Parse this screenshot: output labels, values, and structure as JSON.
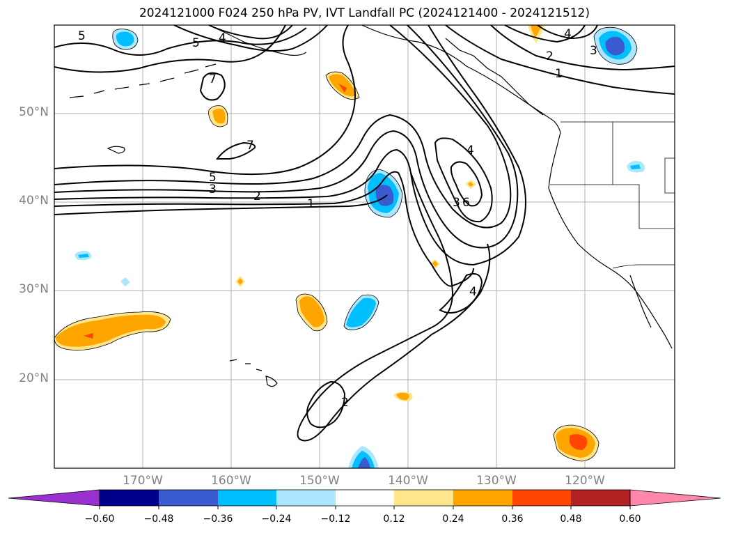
{
  "title": "2024121000 F024 250 hPa PV, IVT Landfall PC (2024121400 - 2024121512)",
  "lat_labels": [
    "50°N",
    "40°N",
    "30°N",
    "20°N"
  ],
  "lon_labels": [
    "170°W",
    "160°W",
    "150°W",
    "140°W",
    "130°W",
    "120°W"
  ],
  "contour_labels": [
    "5",
    "4",
    "5",
    "4",
    "2",
    "1",
    "3",
    "7",
    "7",
    "5",
    "3",
    "2",
    "1",
    "4",
    "3",
    "6",
    "4",
    "2"
  ],
  "colorbar": {
    "ticks": [
      "−0.60",
      "−0.48",
      "−0.36",
      "−0.24",
      "−0.12",
      "0.12",
      "0.24",
      "0.36",
      "0.48",
      "0.60"
    ],
    "colors": [
      "#9b30d0",
      "#00008b",
      "#3a5bd0",
      "#00bfff",
      "#ade6ff",
      "#ffffff",
      "#ffe68c",
      "#ffa500",
      "#ff4500",
      "#b22222",
      "#ff88aa"
    ]
  }
}
